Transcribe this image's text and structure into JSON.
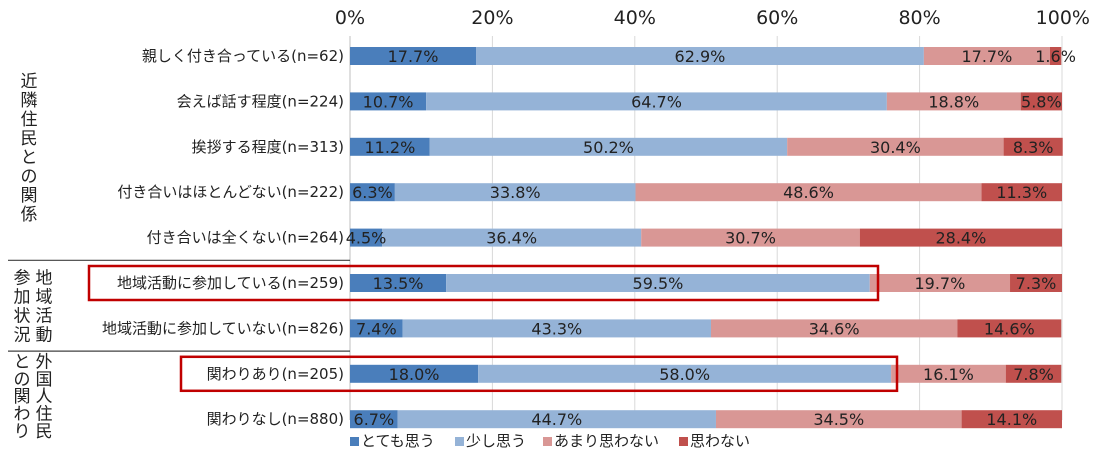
{
  "chart_data": {
    "type": "bar",
    "orientation": "horizontal",
    "stacked": true,
    "x_ticks": [
      "0%",
      "20%",
      "40%",
      "60%",
      "80%",
      "100%"
    ],
    "xlim": [
      0,
      100
    ],
    "legend_position": "bottom",
    "series": [
      {
        "name": "とても思う",
        "color": "#4a7ebb",
        "values": [
          17.7,
          10.7,
          11.2,
          6.3,
          4.5,
          13.5,
          7.4,
          18.0,
          6.7
        ]
      },
      {
        "name": "少し思う",
        "color": "#95b3d7",
        "values": [
          62.9,
          64.7,
          50.2,
          33.8,
          36.4,
          59.5,
          43.3,
          58.0,
          44.7
        ]
      },
      {
        "name": "あまり思わない",
        "color": "#d99795",
        "values": [
          17.7,
          18.8,
          30.4,
          48.6,
          30.7,
          19.7,
          34.6,
          16.1,
          34.5
        ]
      },
      {
        "name": "思わない",
        "color": "#c0504d",
        "values": [
          1.6,
          5.8,
          8.3,
          11.3,
          28.4,
          7.3,
          14.6,
          7.8,
          14.1
        ]
      }
    ],
    "labels": [
      [
        "17.7%",
        "62.9%",
        "17.7%",
        "1.6%"
      ],
      [
        "10.7%",
        "64.7%",
        "18.8%",
        "5.8%"
      ],
      [
        "11.2%",
        "50.2%",
        "30.4%",
        "8.3%"
      ],
      [
        "6.3%",
        "33.8%",
        "48.6%",
        "11.3%"
      ],
      [
        "4.5%",
        "36.4%",
        "30.7%",
        "28.4%"
      ],
      [
        "13.5%",
        "59.5%",
        "19.7%",
        "7.3%"
      ],
      [
        "7.4%",
        "43.3%",
        "34.6%",
        "14.6%"
      ],
      [
        "18.0%",
        "58.0%",
        "16.1%",
        "7.8%"
      ],
      [
        "6.7%",
        "44.7%",
        "34.5%",
        "14.1%"
      ]
    ],
    "categories": [
      "親しく付き合っている(n=62)",
      "会えば話す程度(n=224)",
      "挨拶する程度(n=313)",
      "付き合いはほとんどない(n=222)",
      "付き合いは全くない(n=264)",
      "地域活動に参加している(n=259)",
      "地域活動に参加していない(n=826)",
      "関わりあり(n=205)",
      "関わりなし(n=880)"
    ],
    "groups": [
      {
        "lines": [
          "近隣住民との関係"
        ],
        "rows": [
          0,
          4
        ]
      },
      {
        "lines": [
          "地域活動",
          "参加状況"
        ],
        "rows": [
          5,
          6
        ]
      },
      {
        "lines": [
          "外国人住民",
          "との関わり"
        ],
        "rows": [
          7,
          8
        ]
      }
    ],
    "highlighted_rows": [
      5,
      7
    ],
    "highlight_color": "#c00000"
  }
}
